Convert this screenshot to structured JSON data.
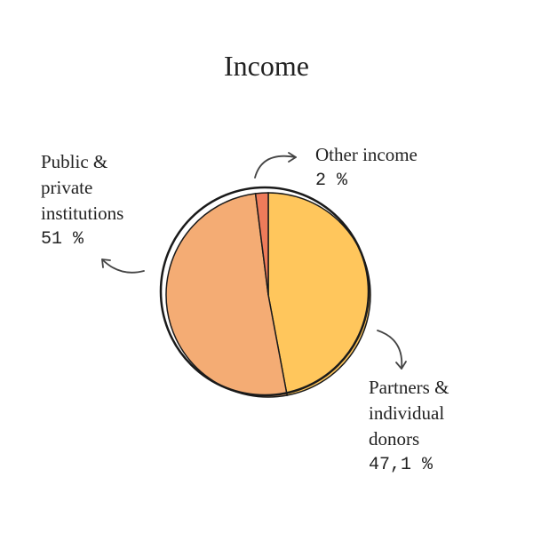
{
  "chart_data": {
    "type": "pie",
    "title": "Income",
    "categories": [
      "Partners & individual donors",
      "Public & private institutions",
      "Other income"
    ],
    "values": [
      47.1,
      51,
      2
    ],
    "value_labels": [
      "47,1 %",
      "51 %",
      "2 %"
    ],
    "colors": [
      "#ffc65c",
      "#f4ac74",
      "#ee7b5a"
    ]
  }
}
